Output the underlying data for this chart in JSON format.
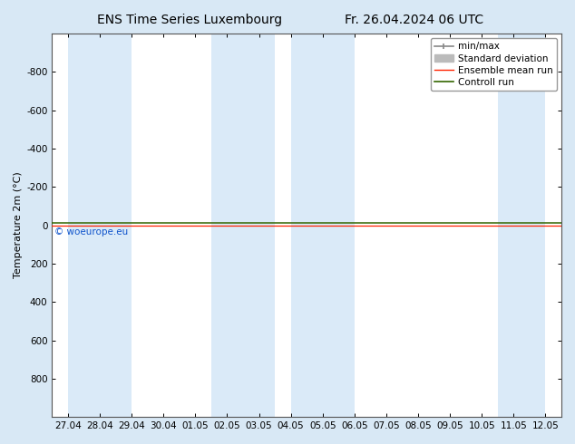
{
  "title_left": "ENS Time Series Luxembourg",
  "title_right": "Fr. 26.04.2024 06 UTC",
  "ylabel": "Temperature 2m (°C)",
  "copyright": "© woeurope.eu",
  "ylim_bottom": 1000,
  "ylim_top": -1000,
  "yticks": [
    -800,
    -600,
    -400,
    -200,
    0,
    200,
    400,
    600,
    800
  ],
  "xtick_labels": [
    "27.04",
    "28.04",
    "29.04",
    "30.04",
    "01.05",
    "02.05",
    "03.05",
    "04.05",
    "05.05",
    "06.05",
    "07.05",
    "08.05",
    "09.05",
    "10.05",
    "11.05",
    "12.05"
  ],
  "xlim_min": 0,
  "xlim_max": 15,
  "fig_bg_color": "#d8e8f5",
  "plot_bg_color": "#ffffff",
  "band_color": "#daeaf8",
  "band_spans": [
    [
      0,
      1
    ],
    [
      1,
      2
    ],
    [
      4.5,
      5.5
    ],
    [
      5.5,
      6.5
    ],
    [
      7,
      8
    ],
    [
      8,
      9
    ],
    [
      13.5,
      15
    ]
  ],
  "green_line_y": -10,
  "red_line_y": 0,
  "green_color": "#336600",
  "red_color": "#ff2200",
  "minmax_color": "#888888",
  "stddev_color": "#bbbbbb",
  "legend_labels": [
    "min/max",
    "Standard deviation",
    "Ensemble mean run",
    "Controll run"
  ],
  "title_fontsize": 10,
  "axis_fontsize": 8,
  "tick_fontsize": 7.5,
  "legend_fontsize": 7.5
}
